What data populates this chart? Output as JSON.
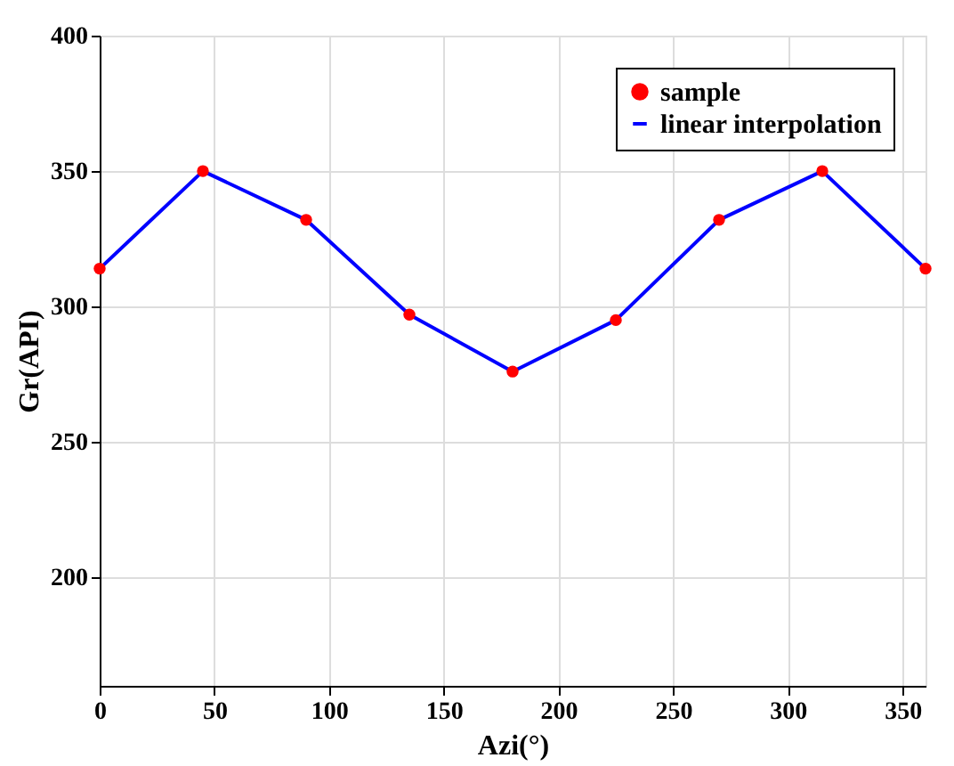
{
  "chart_data": {
    "type": "line",
    "xlabel": "Azi(°)",
    "ylabel": "Gr(API)",
    "x": [
      0,
      45,
      90,
      135,
      180,
      225,
      270,
      315,
      360
    ],
    "series": [
      {
        "name": "sample",
        "type": "scatter",
        "color": "#ff0000",
        "marker": "circle",
        "values": [
          314,
          350,
          332,
          297,
          276,
          295,
          332,
          350,
          314
        ]
      },
      {
        "name": "linear interpolation",
        "color": "#0000ff",
        "marker": "none",
        "line_style": "solid",
        "values": [
          314,
          350,
          332,
          297,
          276,
          295,
          332,
          350,
          314
        ]
      }
    ],
    "xlim": [
      0,
      360
    ],
    "xticks": [
      0,
      50,
      100,
      150,
      200,
      250,
      300,
      350
    ],
    "ylim": [
      160,
      400
    ],
    "yticks": [
      200,
      250,
      300,
      350,
      400
    ],
    "grid": true,
    "legend": "top right"
  }
}
